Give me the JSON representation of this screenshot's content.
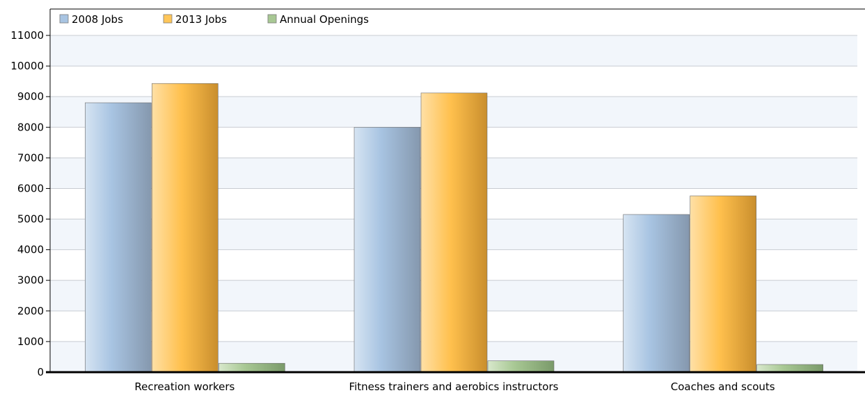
{
  "chart_data": {
    "type": "bar",
    "categories": [
      "Recreation workers",
      "Fitness trainers and aerobics instructors",
      "Coaches and scouts"
    ],
    "series": [
      {
        "name": "2008 Jobs",
        "values": [
          8800,
          8000,
          5150
        ],
        "color": "#a8c4e2"
      },
      {
        "name": "2013 Jobs",
        "values": [
          9430,
          9120,
          5760
        ],
        "color": "#ffc659"
      },
      {
        "name": "Annual Openings",
        "values": [
          290,
          370,
          250
        ],
        "color": "#a8c894"
      }
    ],
    "ylim": [
      0,
      11000
    ],
    "yticks": [
      0,
      1000,
      2000,
      3000,
      4000,
      5000,
      6000,
      7000,
      8000,
      9000,
      10000,
      11000
    ],
    "grid": true,
    "legend_position": "top-left",
    "title": "",
    "xlabel": "",
    "ylabel": ""
  }
}
